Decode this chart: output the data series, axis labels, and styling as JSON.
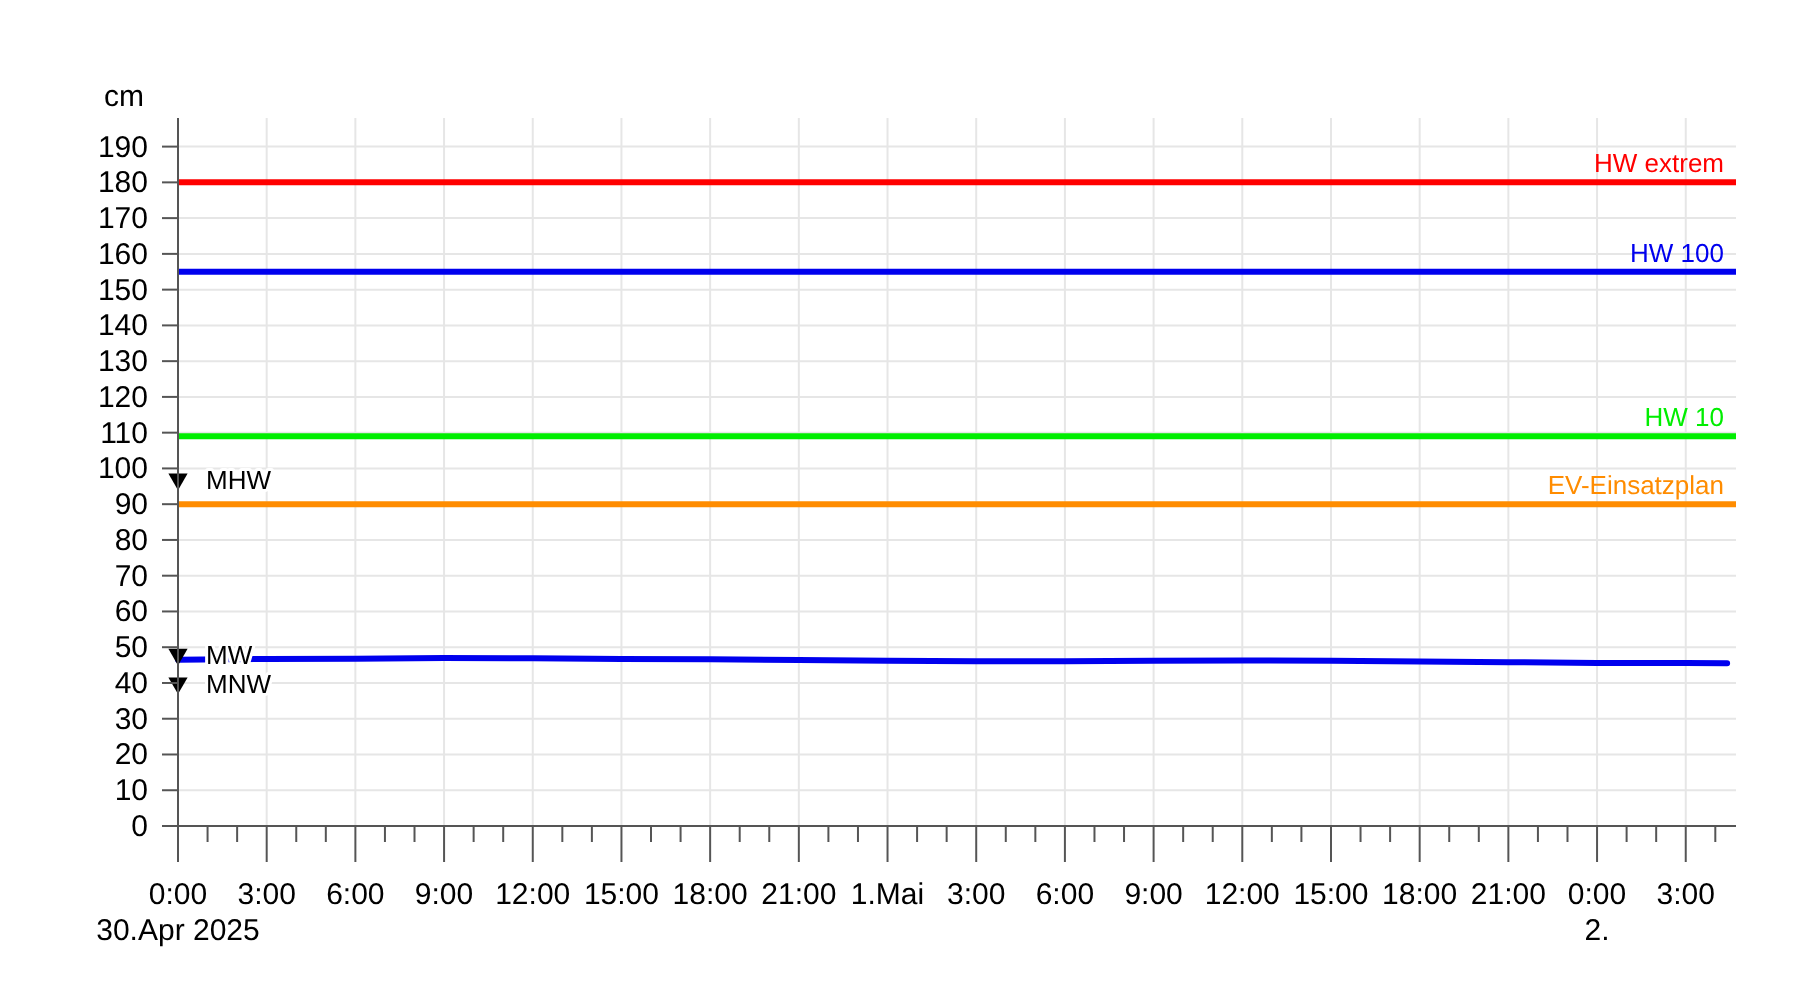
{
  "chart_data": {
    "type": "line",
    "ylabel": "cm",
    "x": [
      "2025-04-30T00:00",
      "2025-04-30T03:00",
      "2025-04-30T06:00",
      "2025-04-30T09:00",
      "2025-04-30T12:00",
      "2025-04-30T15:00",
      "2025-04-30T18:00",
      "2025-04-30T21:00",
      "2025-05-01T00:00",
      "2025-05-01T03:00",
      "2025-05-01T06:00",
      "2025-05-01T09:00",
      "2025-05-01T12:00",
      "2025-05-01T15:00",
      "2025-05-01T18:00",
      "2025-05-01T21:00",
      "2025-05-02T00:00",
      "2025-05-02T03:00",
      "2025-05-02T04:24"
    ],
    "series": [
      {
        "color": "#0000ee",
        "values": [
          46.5,
          46.7,
          46.8,
          47,
          46.9,
          46.7,
          46.6,
          46.4,
          46.2,
          46.1,
          46.1,
          46.2,
          46.3,
          46.2,
          46,
          45.8,
          45.6,
          45.6,
          45.5
        ]
      },
      {
        "type": "scatter",
        "name": "MHW",
        "color": "#000000",
        "marker": "triangle",
        "x": [
          "2025-04-30T00:00"
        ],
        "values": [
          97
        ]
      },
      {
        "type": "scatter",
        "name": "MW",
        "color": "#000000",
        "marker": "triangle",
        "x": [
          "2025-04-30T00:00"
        ],
        "values": [
          48
        ]
      },
      {
        "type": "scatter",
        "name": "MNW",
        "color": "#000000",
        "marker": "triangle",
        "x": [
          "2025-04-30T00:00"
        ],
        "values": [
          40
        ]
      }
    ],
    "xlim": [
      "2025-04-30T00:00",
      "2025-05-02T04:42"
    ],
    "xticks": [
      {
        "value": "2025-04-30T00:00",
        "label": "0:00\n30.Apr 2025"
      },
      {
        "value": "2025-04-30T01:00",
        "label": null
      },
      {
        "value": "2025-04-30T02:00",
        "label": null
      },
      {
        "value": "2025-04-30T03:00",
        "label": "3:00"
      },
      {
        "value": "2025-04-30T04:00",
        "label": null
      },
      {
        "value": "2025-04-30T05:00",
        "label": null
      },
      {
        "value": "2025-04-30T06:00",
        "label": "6:00"
      },
      {
        "value": "2025-04-30T07:00",
        "label": null
      },
      {
        "value": "2025-04-30T08:00",
        "label": null
      },
      {
        "value": "2025-04-30T09:00",
        "label": "9:00"
      },
      {
        "value": "2025-04-30T10:00",
        "label": null
      },
      {
        "value": "2025-04-30T11:00",
        "label": null
      },
      {
        "value": "2025-04-30T12:00",
        "label": "12:00"
      },
      {
        "value": "2025-04-30T13:00",
        "label": null
      },
      {
        "value": "2025-04-30T14:00",
        "label": null
      },
      {
        "value": "2025-04-30T15:00",
        "label": "15:00"
      },
      {
        "value": "2025-04-30T16:00",
        "label": null
      },
      {
        "value": "2025-04-30T17:00",
        "label": null
      },
      {
        "value": "2025-04-30T18:00",
        "label": "18:00"
      },
      {
        "value": "2025-04-30T19:00",
        "label": null
      },
      {
        "value": "2025-04-30T20:00",
        "label": null
      },
      {
        "value": "2025-04-30T21:00",
        "label": "21:00"
      },
      {
        "value": "2025-04-30T22:00",
        "label": null
      },
      {
        "value": "2025-04-30T23:00",
        "label": null
      },
      {
        "value": "2025-05-01T00:00",
        "label": "1.Mai"
      },
      {
        "value": "2025-05-01T01:00",
        "label": null
      },
      {
        "value": "2025-05-01T02:00",
        "label": null
      },
      {
        "value": "2025-05-01T03:00",
        "label": "3:00"
      },
      {
        "value": "2025-05-01T04:00",
        "label": null
      },
      {
        "value": "2025-05-01T05:00",
        "label": null
      },
      {
        "value": "2025-05-01T06:00",
        "label": "6:00"
      },
      {
        "value": "2025-05-01T07:00",
        "label": null
      },
      {
        "value": "2025-05-01T08:00",
        "label": null
      },
      {
        "value": "2025-05-01T09:00",
        "label": "9:00"
      },
      {
        "value": "2025-05-01T10:00",
        "label": null
      },
      {
        "value": "2025-05-01T11:00",
        "label": null
      },
      {
        "value": "2025-05-01T12:00",
        "label": "12:00"
      },
      {
        "value": "2025-05-01T13:00",
        "label": null
      },
      {
        "value": "2025-05-01T14:00",
        "label": null
      },
      {
        "value": "2025-05-01T15:00",
        "label": "15:00"
      },
      {
        "value": "2025-05-01T16:00",
        "label": null
      },
      {
        "value": "2025-05-01T17:00",
        "label": null
      },
      {
        "value": "2025-05-01T18:00",
        "label": "18:00"
      },
      {
        "value": "2025-05-01T19:00",
        "label": null
      },
      {
        "value": "2025-05-01T20:00",
        "label": null
      },
      {
        "value": "2025-05-01T21:00",
        "label": "21:00"
      },
      {
        "value": "2025-05-01T22:00",
        "label": null
      },
      {
        "value": "2025-05-01T23:00",
        "label": null
      },
      {
        "value": "2025-05-02T00:00",
        "label": "0:00\n2."
      },
      {
        "value": "2025-05-02T01:00",
        "label": null
      },
      {
        "value": "2025-05-02T02:00",
        "label": null
      },
      {
        "value": "2025-05-02T03:00",
        "label": "3:00"
      },
      {
        "value": "2025-05-02T04:00",
        "label": null
      }
    ],
    "ylim": [
      0,
      198
    ],
    "yticks": [
      0,
      10,
      20,
      30,
      40,
      50,
      60,
      70,
      80,
      90,
      100,
      110,
      120,
      130,
      140,
      150,
      160,
      170,
      180,
      190
    ],
    "grid": true,
    "line_style": "solid",
    "ref_lines": [
      {
        "axis": "y",
        "value": 180,
        "label": "HW extrem",
        "color": "#ff0000"
      },
      {
        "axis": "y",
        "value": 155,
        "label": "HW 100",
        "color": "#0000ee"
      },
      {
        "axis": "y",
        "value": 109,
        "label": "HW 10",
        "color": "#00ee00"
      },
      {
        "axis": "y",
        "value": 90,
        "label": "EV-Einsatzplan",
        "color": "#ff8c00"
      }
    ]
  }
}
